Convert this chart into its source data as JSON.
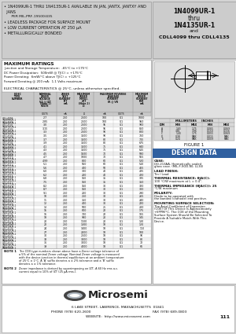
{
  "bg_color": "#d4d4d4",
  "panel_bg": "#d0d0d0",
  "white": "#ffffff",
  "black": "#000000",
  "header_title_lines": [
    "1N4099UR-1",
    "thru",
    "1N4135UR-1",
    "and",
    "CDLL4099 thru CDLL4135"
  ],
  "bullet1a": "• 1N4099UR-1 THRU 1N4135UR-1 AVAILABLE IN JAN, JANTX, JANTXY AND",
  "bullet1b": "  JANS",
  "bullet1c": "    PER MIL-PRF-19500/435",
  "bullet2": "• LEADLESS PACKAGE FOR SURFACE MOUNT",
  "bullet3": "• LOW CURRENT OPERATION AT 250 μA",
  "bullet4": "• METALLURGICALLY BONDED",
  "max_ratings_title": "MAXIMUM RATINGS",
  "max_ratings": [
    "Junction and Storage Temperature:  -65°C to +175°C",
    "DC Power Dissipation:  500mW @ TJ(C) = +175°C",
    "Power Derating:  6mW/°C above TJ(C) = +125°C",
    "Forward Derating @ 200 mA:  1.1 Volts maximum"
  ],
  "elec_char_title": "ELECTRICAL CHARACTERISTICS @ 25°C, unless otherwise specified.",
  "table_rows": [
    [
      "CDLL4099",
      "1N4099UR-1",
      "2.7",
      "250",
      "2500",
      "100",
      "0.1",
      "1",
      "1000"
    ],
    [
      "CDLL4100",
      "1N4100UR-1",
      "2.85",
      "250",
      "2500",
      "100",
      "0.1",
      "1",
      "950"
    ],
    [
      "CDLL4101",
      "1N4101UR-1",
      "3.0",
      "250",
      "2500",
      "95",
      "0.1",
      "1",
      "900"
    ],
    [
      "CDLL4102",
      "1N4102UR-1",
      "3.15",
      "250",
      "2500",
      "95",
      "0.1",
      "1",
      "850"
    ],
    [
      "CDLL4103",
      "1N4103UR-1",
      "3.3",
      "250",
      "2500",
      "90",
      "0.1",
      "1",
      "800"
    ],
    [
      "CDLL4104",
      "1N4104UR-1",
      "3.5",
      "250",
      "3500",
      "90",
      "0.1",
      "1",
      "760"
    ],
    [
      "CDLL4105",
      "1N4105UR-1",
      "3.7",
      "250",
      "3500",
      "80",
      "0.1",
      "1",
      "715"
    ],
    [
      "CDLL4106",
      "1N4106UR-1",
      "3.9",
      "250",
      "3500",
      "80",
      "0.1",
      "1",
      "675"
    ],
    [
      "CDLL4107",
      "1N4107UR-1",
      "4.1",
      "250",
      "3500",
      "75",
      "0.1",
      "1",
      "640"
    ],
    [
      "CDLL4108",
      "1N4108UR-1",
      "4.3",
      "250",
      "3500",
      "75",
      "0.1",
      "1",
      "615"
    ],
    [
      "CDLL4109",
      "1N4109UR-1",
      "4.5",
      "250",
      "1500",
      "70",
      "0.1",
      "2",
      "580"
    ],
    [
      "CDLL4110",
      "1N4110UR-1",
      "4.7",
      "250",
      "1000",
      "70",
      "0.1",
      "2",
      "555"
    ],
    [
      "CDLL4111",
      "1N4111UR-1",
      "4.99",
      "250",
      "800",
      "60",
      "0.1",
      "2",
      "520"
    ],
    [
      "CDLL4112",
      "1N4112UR-1",
      "5.1",
      "250",
      "550",
      "60",
      "0.1",
      "2",
      "510"
    ],
    [
      "CDLL4113",
      "1N4113UR-1",
      "5.6",
      "250",
      "400",
      "50",
      "0.1",
      "2",
      "465"
    ],
    [
      "CDLL4114",
      "1N4114UR-1",
      "6.0",
      "250",
      "300",
      "40",
      "0.1",
      "3",
      "435"
    ],
    [
      "CDLL4115",
      "1N4115UR-1",
      "6.2",
      "250",
      "200",
      "40",
      "0.1",
      "3",
      "420"
    ],
    [
      "CDLL4116",
      "1N4116UR-1",
      "6.8",
      "250",
      "150",
      "35",
      "0.1",
      "4",
      "385"
    ],
    [
      "CDLL4117",
      "1N4117UR-1",
      "7.5",
      "250",
      "150",
      "35",
      "0.1",
      "4",
      "350"
    ],
    [
      "CDLL4118",
      "1N4118UR-1",
      "8.2",
      "250",
      "150",
      "30",
      "0.1",
      "5",
      "320"
    ],
    [
      "CDLL4119",
      "1N4119UR-1",
      "8.7",
      "250",
      "150",
      "30",
      "0.1",
      "6",
      "300"
    ],
    [
      "CDLL4120",
      "1N4120UR-1",
      "9.1",
      "250",
      "200",
      "30",
      "0.1",
      "6",
      "290"
    ],
    [
      "CDLL4121",
      "1N4121UR-1",
      "10",
      "250",
      "250",
      "30",
      "0.1",
      "7",
      "265"
    ],
    [
      "CDLL4122",
      "1N4122UR-1",
      "11",
      "250",
      "350",
      "30",
      "0.1",
      "8",
      "240"
    ],
    [
      "CDLL4123",
      "1N4123UR-1",
      "12",
      "250",
      "400",
      "30",
      "0.1",
      "8",
      "220"
    ],
    [
      "CDLL4124",
      "1N4124UR-1",
      "13",
      "250",
      "500",
      "25",
      "0.1",
      "9",
      "200"
    ],
    [
      "CDLL4125",
      "1N4125UR-1",
      "15",
      "250",
      "600",
      "22",
      "0.1",
      "10",
      "175"
    ],
    [
      "CDLL4126",
      "1N4126UR-1",
      "16",
      "250",
      "700",
      "22",
      "0.1",
      "11",
      "165"
    ],
    [
      "CDLL4127",
      "1N4127UR-1",
      "18",
      "250",
      "900",
      "20",
      "0.1",
      "12",
      "145"
    ],
    [
      "CDLL4128",
      "1N4128UR-1",
      "20",
      "250",
      "1100",
      "20",
      "0.1",
      "14",
      "130"
    ],
    [
      "CDLL4129",
      "1N4129UR-1",
      "22",
      "250",
      "1300",
      "18",
      "0.1",
      "15",
      "120"
    ],
    [
      "CDLL4130",
      "1N4130UR-1",
      "24",
      "250",
      "1400",
      "18",
      "0.1",
      "16",
      "110"
    ],
    [
      "CDLL4131",
      "1N4131UR-1",
      "27",
      "250",
      "2000",
      "18",
      "0.1",
      "18",
      "100"
    ],
    [
      "CDLL4132",
      "1N4132UR-1",
      "30",
      "250",
      "2500",
      "18",
      "0.1",
      "20",
      "90"
    ],
    [
      "CDLL4133",
      "1N4133UR-1",
      "33",
      "250",
      "3000",
      "18",
      "0.1",
      "21",
      "80"
    ],
    [
      "CDLL4134",
      "1N4134UR-1",
      "36",
      "250",
      "3000",
      "18",
      "0.1",
      "24",
      "72"
    ],
    [
      "CDLL4135",
      "1N4135UR-1",
      "39",
      "250",
      "4000",
      "18",
      "0.1",
      "26",
      "66"
    ]
  ],
  "dim_rows": [
    [
      "A",
      "1.65",
      "1.75",
      "0.065",
      "0.069"
    ],
    [
      "B",
      "3.81",
      "3.96",
      "0.150",
      "0.156"
    ],
    [
      "C",
      "1.40",
      "1.75",
      "0.055",
      "0.069"
    ],
    [
      "D",
      "0.38",
      "MAX",
      "0.015",
      "MAX"
    ],
    [
      "E",
      "0.24",
      "MAX",
      "0.009",
      "MAX"
    ]
  ],
  "footer_address": "6 LAKE STREET, LAWRENCE, MASSACHUSETTS  01841",
  "footer_phone": "PHONE (978) 620-2600",
  "footer_fax": "FAX (978) 689-0803",
  "footer_website": "WEBSITE:  http://www.microsemi.com",
  "footer_page": "111"
}
